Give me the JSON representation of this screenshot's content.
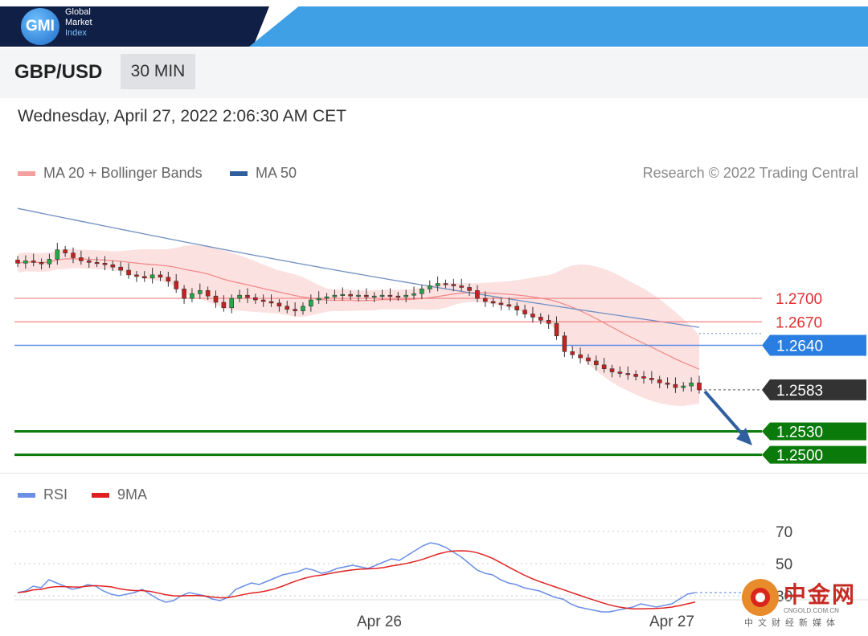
{
  "brand": {
    "logo": "GMI",
    "line1": "Global",
    "line2": "Market",
    "line3": "Index"
  },
  "instrument": "GBP/USD",
  "timeframe": "30 MIN",
  "datetime": "Wednesday, April 27, 2022 2:06:30 AM CET",
  "legend": {
    "ma20": "MA 20 + Bollinger Bands",
    "ma50": "MA 50",
    "ma20_color": "#f28b8b",
    "ma50_color": "#2f5f9e"
  },
  "credit": "Research © 2022 Trading Central",
  "rsi_legend": {
    "rsi": "RSI",
    "ma9": "9MA",
    "rsi_color": "#6b8fe6",
    "ma9_color": "#e02020"
  },
  "levels": [
    {
      "value": "1.2700",
      "type": "resistance",
      "color": "#e03030"
    },
    {
      "value": "1.2670",
      "type": "resistance",
      "color": "#e03030"
    },
    {
      "value": "1.2640",
      "type": "pivot",
      "color": "#2a7de1"
    },
    {
      "value": "1.2583",
      "type": "last-price",
      "color": "#333333"
    },
    {
      "value": "1.2530",
      "type": "target",
      "color": "#0a7a0a"
    },
    {
      "value": "1.2500",
      "type": "target",
      "color": "#0a7a0a"
    }
  ],
  "watermark": {
    "name": "中金网",
    "url": "CNGOLD.COM.CN",
    "sub": "中文财经新媒体"
  },
  "chart_data": {
    "type": "candlestick",
    "x_tick_labels": [
      "Apr 26",
      "Apr 27"
    ],
    "price_series_close": [
      1.2745,
      1.2748,
      1.2746,
      1.2744,
      1.275,
      1.2762,
      1.2758,
      1.2752,
      1.2748,
      1.2746,
      1.2745,
      1.2743,
      1.274,
      1.2736,
      1.273,
      1.2728,
      1.2726,
      1.273,
      1.2727,
      1.2722,
      1.2712,
      1.27,
      1.2706,
      1.271,
      1.2703,
      1.2695,
      1.2688,
      1.27,
      1.2704,
      1.2701,
      1.2698,
      1.2696,
      1.2694,
      1.269,
      1.2686,
      1.2684,
      1.269,
      1.2698,
      1.27,
      1.2702,
      1.2704,
      1.2705,
      1.2703,
      1.2704,
      1.2702,
      1.2703,
      1.2704,
      1.2703,
      1.2702,
      1.2704,
      1.2706,
      1.2712,
      1.2716,
      1.2719,
      1.2718,
      1.2716,
      1.2714,
      1.271,
      1.27,
      1.2696,
      1.2694,
      1.2692,
      1.269,
      1.2685,
      1.268,
      1.2676,
      1.2672,
      1.2668,
      1.2652,
      1.2632,
      1.2628,
      1.2624,
      1.262,
      1.2615,
      1.261,
      1.2606,
      1.2604,
      1.2603,
      1.26,
      1.2598,
      1.2596,
      1.2592,
      1.259,
      1.2586,
      1.2588,
      1.2592,
      1.2583
    ],
    "ma50_start": 1.2815,
    "ma50_end": 1.2655,
    "horizontal_levels": [
      1.27,
      1.267,
      1.264,
      1.2583,
      1.253,
      1.25
    ],
    "projection": "down toward 1.2530",
    "rsi": {
      "levels": [
        70,
        50,
        30
      ],
      "rsi_values": [
        32,
        33,
        36,
        35,
        40,
        38,
        36,
        34,
        35,
        37,
        36,
        33,
        31,
        30,
        31,
        32,
        34,
        31,
        28,
        26,
        27,
        30,
        32,
        31,
        30,
        28,
        27,
        29,
        34,
        36,
        38,
        37,
        39,
        41,
        43,
        44,
        45,
        47,
        46,
        44,
        45,
        47,
        48,
        49,
        48,
        47,
        49,
        51,
        53,
        52,
        55,
        58,
        61,
        63,
        62,
        60,
        57,
        54,
        50,
        46,
        44,
        43,
        40,
        38,
        37,
        35,
        34,
        33,
        31,
        29,
        28,
        25,
        23,
        22,
        21,
        20,
        20,
        21,
        22,
        23,
        25,
        24,
        23,
        24,
        25,
        28,
        31,
        32
      ]
    },
    "title": "GBP/USD",
    "xlabel": "",
    "ylabel": ""
  }
}
